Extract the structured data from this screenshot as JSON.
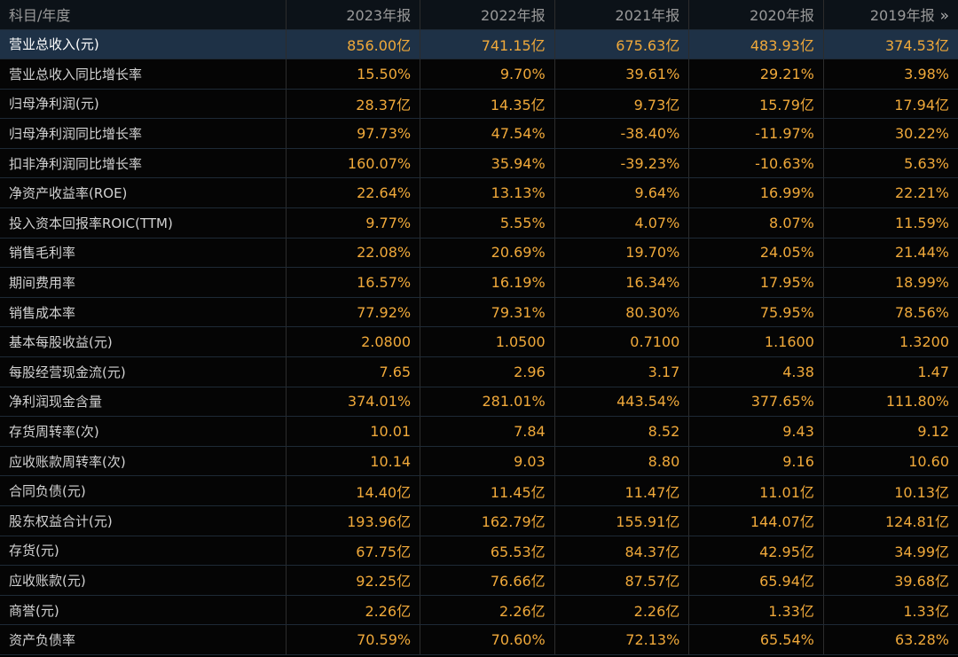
{
  "header": {
    "label": "科目/年度",
    "years": [
      "2023年报",
      "2022年报",
      "2021年报",
      "2020年报",
      "2019年报"
    ],
    "more_icon": "»"
  },
  "rows": [
    {
      "label": "营业总收入(元)",
      "values": [
        "856.00亿",
        "741.15亿",
        "675.63亿",
        "483.93亿",
        "374.53亿"
      ],
      "highlight": true
    },
    {
      "label": "营业总收入同比增长率",
      "values": [
        "15.50%",
        "9.70%",
        "39.61%",
        "29.21%",
        "3.98%"
      ]
    },
    {
      "label": "归母净利润(元)",
      "values": [
        "28.37亿",
        "14.35亿",
        "9.73亿",
        "15.79亿",
        "17.94亿"
      ]
    },
    {
      "label": "归母净利润同比增长率",
      "values": [
        "97.73%",
        "47.54%",
        "-38.40%",
        "-11.97%",
        "30.22%"
      ]
    },
    {
      "label": "扣非净利润同比增长率",
      "values": [
        "160.07%",
        "35.94%",
        "-39.23%",
        "-10.63%",
        "5.63%"
      ]
    },
    {
      "label": "净资产收益率(ROE)",
      "values": [
        "22.64%",
        "13.13%",
        "9.64%",
        "16.99%",
        "22.21%"
      ]
    },
    {
      "label": "投入资本回报率ROIC(TTM)",
      "values": [
        "9.77%",
        "5.55%",
        "4.07%",
        "8.07%",
        "11.59%"
      ]
    },
    {
      "label": "销售毛利率",
      "values": [
        "22.08%",
        "20.69%",
        "19.70%",
        "24.05%",
        "21.44%"
      ]
    },
    {
      "label": "期间费用率",
      "values": [
        "16.57%",
        "16.19%",
        "16.34%",
        "17.95%",
        "18.99%"
      ]
    },
    {
      "label": "销售成本率",
      "values": [
        "77.92%",
        "79.31%",
        "80.30%",
        "75.95%",
        "78.56%"
      ]
    },
    {
      "label": "基本每股收益(元)",
      "values": [
        "2.0800",
        "1.0500",
        "0.7100",
        "1.1600",
        "1.3200"
      ]
    },
    {
      "label": "每股经营现金流(元)",
      "values": [
        "7.65",
        "2.96",
        "3.17",
        "4.38",
        "1.47"
      ]
    },
    {
      "label": "净利润现金含量",
      "values": [
        "374.01%",
        "281.01%",
        "443.54%",
        "377.65%",
        "111.80%"
      ]
    },
    {
      "label": "存货周转率(次)",
      "values": [
        "10.01",
        "7.84",
        "8.52",
        "9.43",
        "9.12"
      ]
    },
    {
      "label": "应收账款周转率(次)",
      "values": [
        "10.14",
        "9.03",
        "8.80",
        "9.16",
        "10.60"
      ]
    },
    {
      "label": "合同负债(元)",
      "values": [
        "14.40亿",
        "11.45亿",
        "11.47亿",
        "11.01亿",
        "10.13亿"
      ]
    },
    {
      "label": "股东权益合计(元)",
      "values": [
        "193.96亿",
        "162.79亿",
        "155.91亿",
        "144.07亿",
        "124.81亿"
      ]
    },
    {
      "label": "存货(元)",
      "values": [
        "67.75亿",
        "65.53亿",
        "84.37亿",
        "42.95亿",
        "34.99亿"
      ]
    },
    {
      "label": "应收账款(元)",
      "values": [
        "92.25亿",
        "76.66亿",
        "87.57亿",
        "65.94亿",
        "39.68亿"
      ]
    },
    {
      "label": "商誉(元)",
      "values": [
        "2.26亿",
        "2.26亿",
        "2.26亿",
        "1.33亿",
        "1.33亿"
      ]
    },
    {
      "label": "资产负债率",
      "values": [
        "70.59%",
        "70.60%",
        "72.13%",
        "65.54%",
        "63.28%"
      ]
    }
  ]
}
